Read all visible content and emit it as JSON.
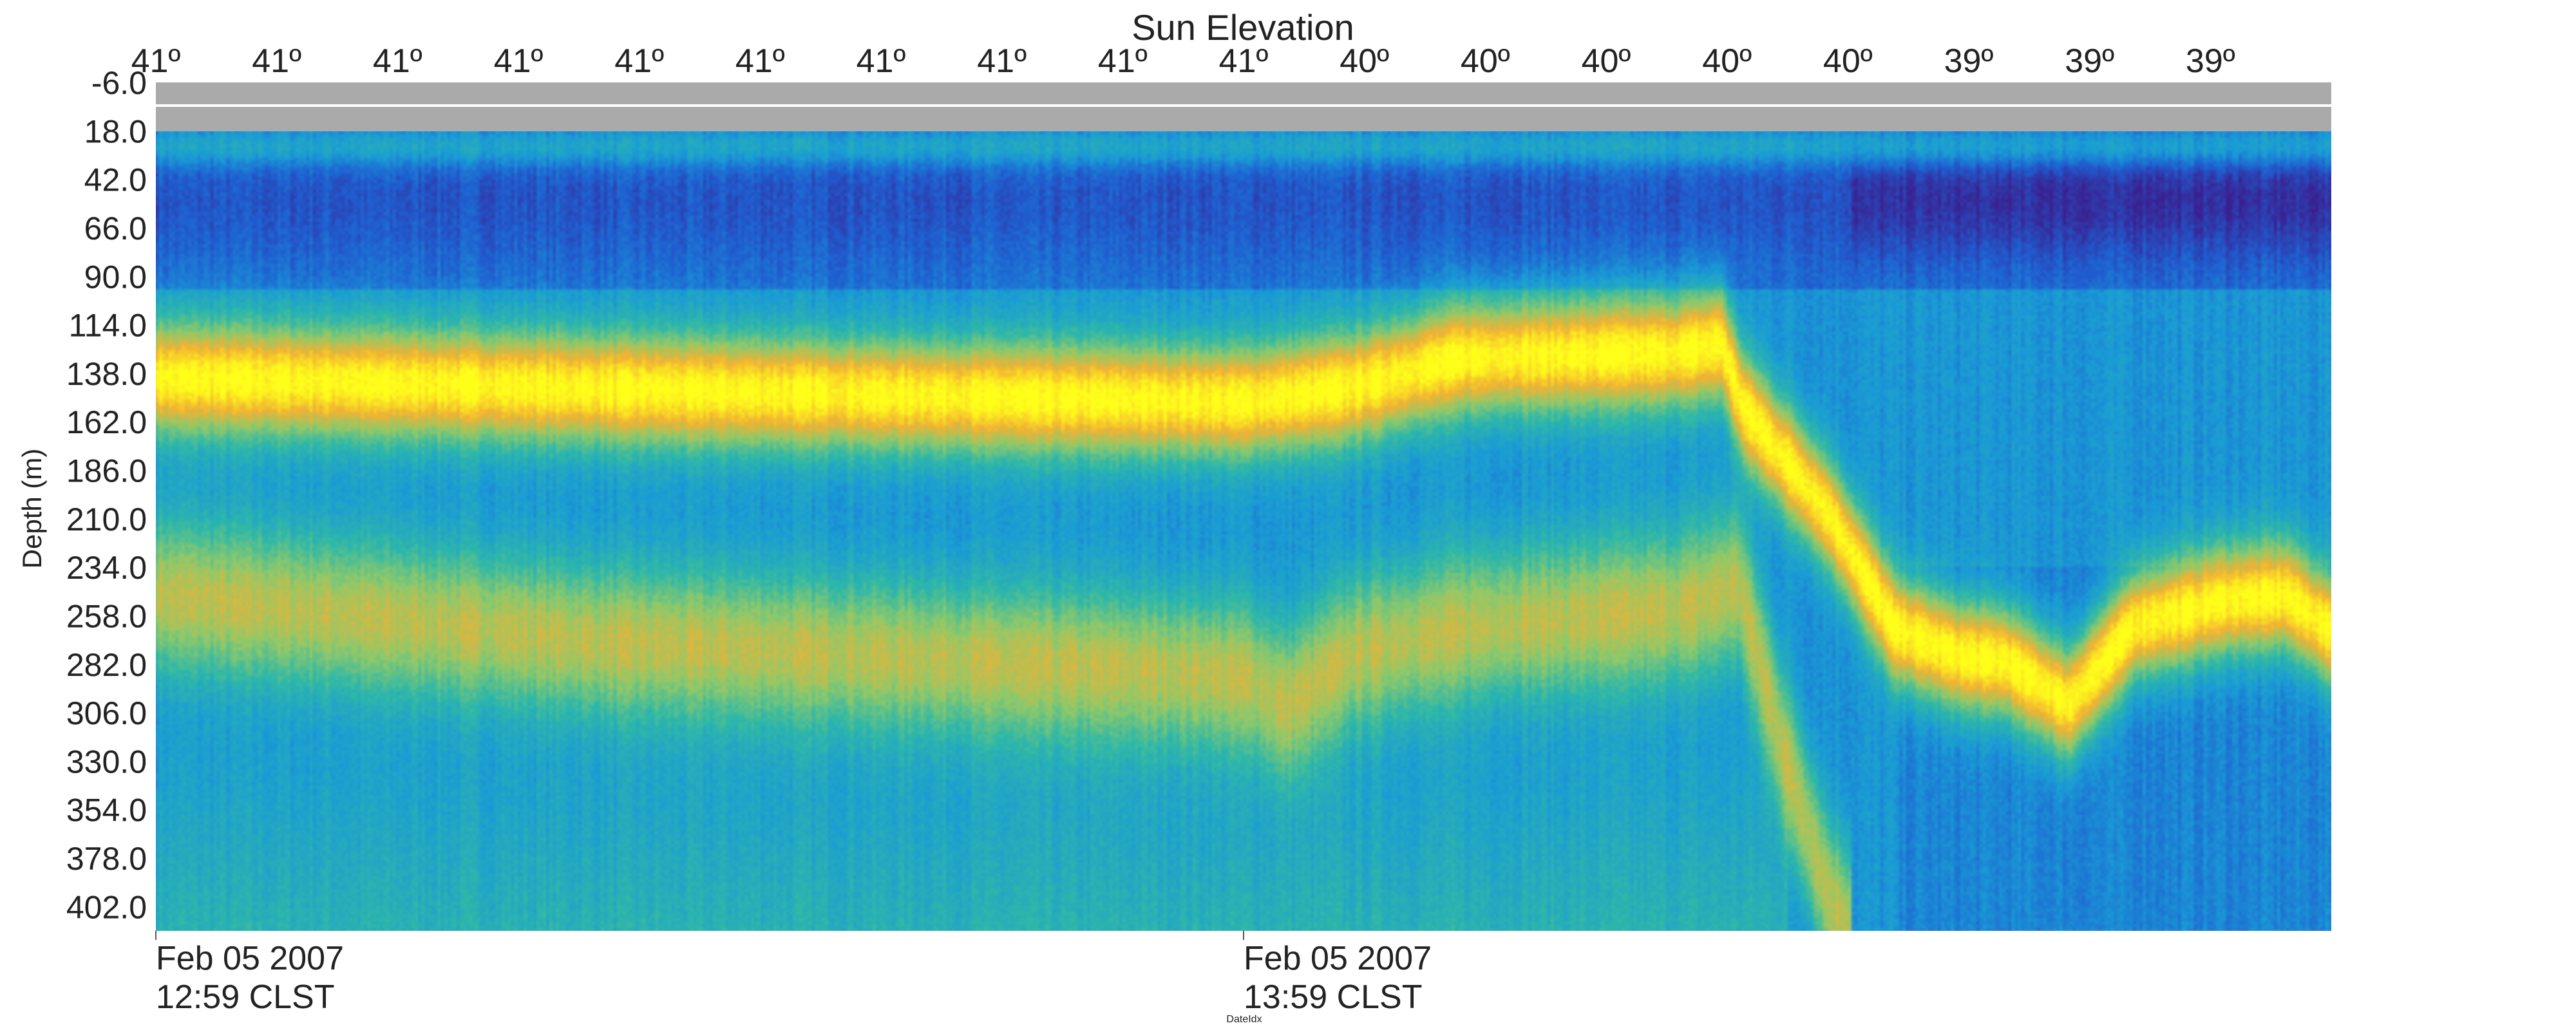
{
  "chart_data": {
    "type": "heatmap",
    "top_axis": {
      "title": "Sun Elevation",
      "tick_labels": [
        "41º",
        "41º",
        "41º",
        "41º",
        "41º",
        "41º",
        "41º",
        "41º",
        "41º",
        "41º",
        "40º",
        "40º",
        "40º",
        "40º",
        "40º",
        "39º",
        "39º",
        "39º"
      ]
    },
    "y_axis": {
      "label": "Depth (m)",
      "tick_labels": [
        "-6.0",
        "18.0",
        "42.0",
        "66.0",
        "90.0",
        "114.0",
        "138.0",
        "162.0",
        "186.0",
        "210.0",
        "234.0",
        "258.0",
        "282.0",
        "306.0",
        "330.0",
        "354.0",
        "378.0",
        "402.0"
      ],
      "range": [
        -6.0,
        414.0
      ]
    },
    "x_axis": {
      "label": "DateIdx",
      "ticks": [
        {
          "date": "Feb 05 2007",
          "time": "12:59 CLST"
        },
        {
          "date": "Feb 05 2007",
          "time": "13:59 CLST"
        }
      ],
      "range": [
        "12:59",
        "14:59"
      ]
    },
    "colormap": [
      "#3b1f8f",
      "#1f5fd1",
      "#1a9bd6",
      "#2fb8a8",
      "#8fc96a",
      "#f2b233",
      "#ffff1a"
    ],
    "no_data_color": "#aaaaaa",
    "layers": [
      {
        "name": "surface",
        "points": [
          [
            0,
            18
          ],
          [
            1,
            18
          ]
        ],
        "width_m": 14,
        "strength": 0.25
      },
      {
        "name": "upper",
        "points": [
          [
            0,
            135
          ],
          [
            0.3,
            143
          ],
          [
            0.5,
            147
          ],
          [
            0.55,
            140
          ],
          [
            0.6,
            125
          ],
          [
            0.7,
            122
          ],
          [
            0.72,
            118
          ],
          [
            0.73,
            150
          ],
          [
            0.77,
            205
          ],
          [
            0.8,
            262
          ],
          [
            0.83,
            276
          ],
          [
            0.85,
            278
          ],
          [
            0.88,
            300
          ],
          [
            0.91,
            260
          ],
          [
            0.95,
            248
          ],
          [
            0.98,
            245
          ],
          [
            1.0,
            262
          ]
        ],
        "width_m": 40,
        "strength": 1.0
      },
      {
        "name": "lower",
        "points": [
          [
            0,
            245
          ],
          [
            0.2,
            268
          ],
          [
            0.5,
            286
          ],
          [
            0.52,
            300
          ],
          [
            0.55,
            275
          ],
          [
            0.6,
            262
          ],
          [
            0.7,
            252
          ],
          [
            0.728,
            240
          ],
          [
            0.75,
            330
          ],
          [
            0.77,
            400
          ],
          [
            0.78,
            415
          ]
        ],
        "width_m": 56,
        "strength": 0.62
      }
    ]
  }
}
